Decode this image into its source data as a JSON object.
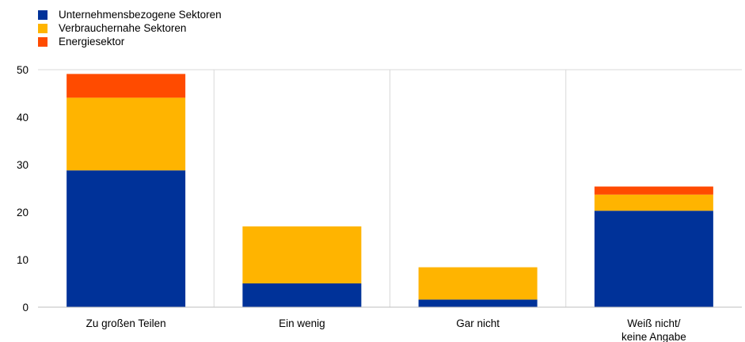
{
  "chart_data": {
    "type": "bar",
    "stacked": true,
    "categories": [
      [
        "Zu großen Teilen"
      ],
      [
        "Ein wenig"
      ],
      [
        "Gar nicht"
      ],
      [
        "Weiß nicht/",
        "keine Angabe"
      ]
    ],
    "series": [
      {
        "name": "Unternehmensbezogene Sektoren",
        "color": "#003299",
        "values": [
          28.8,
          5.0,
          1.6,
          20.3
        ]
      },
      {
        "name": "Verbrauchernahe Sektoren",
        "color": "#FFB400",
        "values": [
          15.3,
          12.0,
          6.8,
          3.4
        ]
      },
      {
        "name": "Energiesektor",
        "color": "#FF4B00",
        "values": [
          5.0,
          0.0,
          0.0,
          1.7
        ]
      }
    ],
    "ylim": [
      0,
      50
    ],
    "yticks": [
      0,
      10,
      20,
      30,
      40,
      50
    ],
    "grid": true,
    "legend": "top-left",
    "xlabel": "",
    "ylabel": "",
    "title": ""
  }
}
